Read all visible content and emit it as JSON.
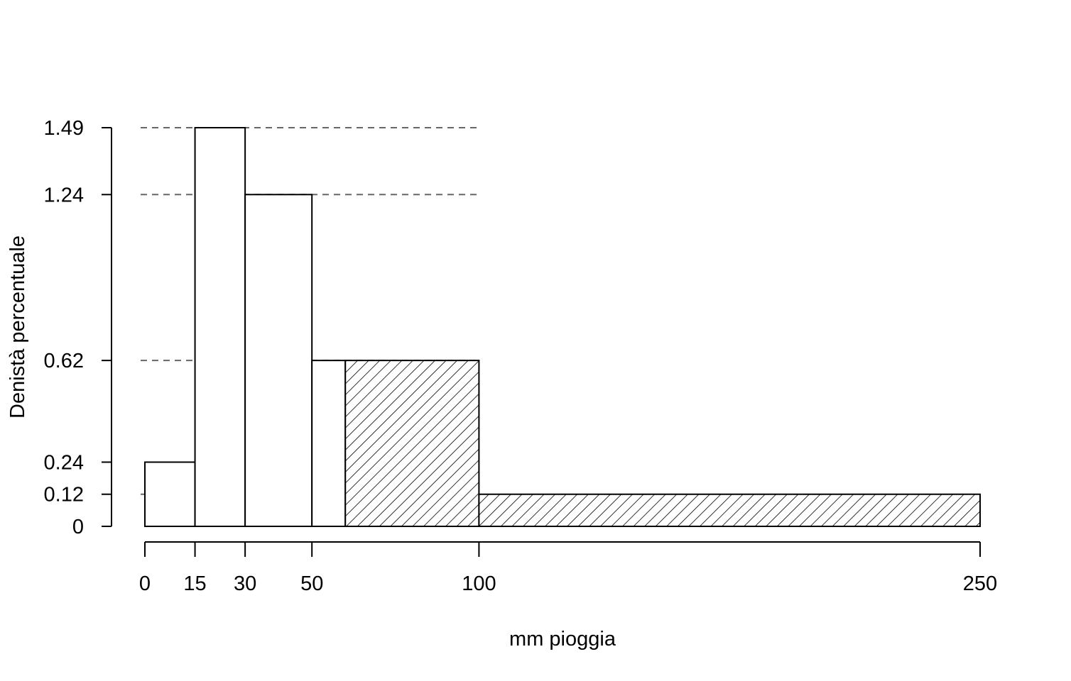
{
  "chart_data": {
    "type": "bar",
    "subtype": "histogram",
    "xlabel": "mm pioggia",
    "ylabel": "Denistà percentuale",
    "xlim": [
      0,
      250
    ],
    "ylim": [
      0,
      1.49
    ],
    "x_ticks": [
      0,
      15,
      30,
      50,
      100,
      250
    ],
    "y_ticks": [
      "0",
      "0.12",
      "0.24",
      "0.62",
      "1.24",
      "1.49"
    ],
    "reference_lines_y": [
      1.49,
      1.24,
      0.62,
      0.12
    ],
    "bins": [
      {
        "x0": 0,
        "x1": 15,
        "density": 0.24,
        "hatched": false
      },
      {
        "x0": 15,
        "x1": 30,
        "density": 1.49,
        "hatched": false
      },
      {
        "x0": 30,
        "x1": 50,
        "density": 1.24,
        "hatched": false
      },
      {
        "x0": 50,
        "x1": 60,
        "density": 0.62,
        "hatched": false
      },
      {
        "x0": 60,
        "x1": 100,
        "density": 0.62,
        "hatched": true
      },
      {
        "x0": 100,
        "x1": 250,
        "density": 0.12,
        "hatched": true
      }
    ],
    "grid": false,
    "legend": "none",
    "colors": {
      "bar_fill": "#ffffff",
      "bar_stroke": "#000000",
      "reference_line": "#666666"
    }
  }
}
